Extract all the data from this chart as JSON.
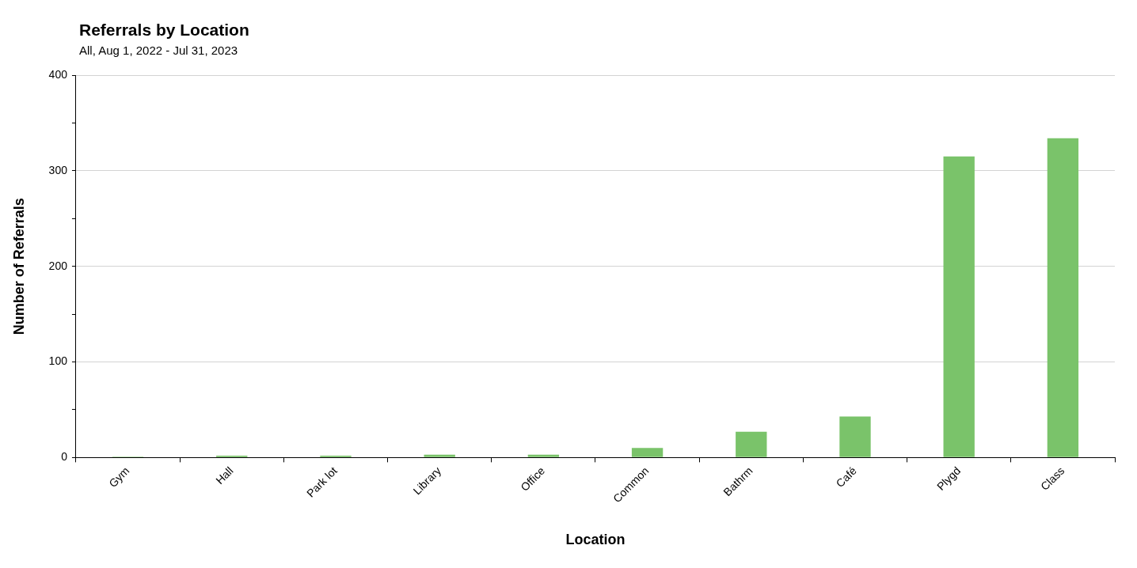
{
  "chart_data": {
    "type": "bar",
    "title": "Referrals by Location",
    "subtitle": "All, Aug 1, 2022 - Jul 31, 2023",
    "xlabel": "Location",
    "ylabel": "Number of Referrals",
    "categories": [
      "Gym",
      "Hall",
      "Park lot",
      "Library",
      "Office",
      "Common",
      "Bathrm",
      "Café",
      "Plygd",
      "Class"
    ],
    "values": [
      1,
      2,
      2,
      3,
      3,
      10,
      27,
      43,
      315,
      334
    ],
    "color": "#7ac36a",
    "ylim": [
      0,
      400
    ],
    "yticks": [
      0,
      {
        "value": 50,
        "label": null
      },
      100,
      {
        "value": 150,
        "label": null
      },
      200,
      {
        "value": 250,
        "label": null
      },
      300,
      {
        "value": 350,
        "label": null
      },
      400
    ],
    "grid": "y",
    "legend": false
  }
}
